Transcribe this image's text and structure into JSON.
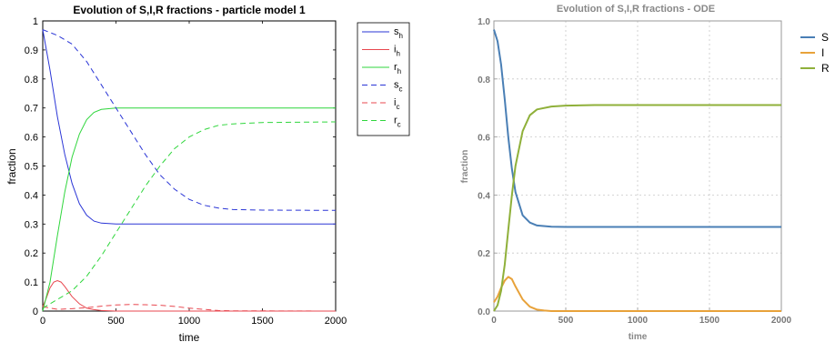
{
  "chart_data": [
    {
      "type": "line",
      "title": "Evolution of S,I,R fractions - particle model 1",
      "xlabel": "time",
      "ylabel": "fraction",
      "xlim": [
        0,
        2000
      ],
      "ylim": [
        0,
        1
      ],
      "xticks": [
        0,
        500,
        1000,
        1500,
        2000
      ],
      "yticks": [
        0,
        0.1,
        0.2,
        0.3,
        0.4,
        0.5,
        0.6,
        0.7,
        0.8,
        0.9,
        1
      ],
      "grid": false,
      "legend_position": "top-right",
      "series": [
        {
          "key": "sh",
          "name": "s",
          "sub": "h",
          "color": "#2a35d6",
          "dash": false,
          "x": [
            0,
            50,
            100,
            150,
            200,
            250,
            300,
            350,
            400,
            500,
            700,
            1000,
            2000
          ],
          "y": [
            0.97,
            0.83,
            0.67,
            0.54,
            0.44,
            0.37,
            0.33,
            0.31,
            0.303,
            0.3,
            0.3,
            0.3,
            0.3
          ]
        },
        {
          "key": "ih",
          "name": "i",
          "sub": "h",
          "color": "#e8474f",
          "dash": false,
          "x": [
            0,
            25,
            50,
            75,
            100,
            125,
            150,
            200,
            250,
            300,
            350,
            400,
            500,
            2000
          ],
          "y": [
            0.015,
            0.045,
            0.08,
            0.1,
            0.105,
            0.1,
            0.085,
            0.05,
            0.025,
            0.01,
            0.005,
            0.002,
            0,
            0
          ]
        },
        {
          "key": "rh",
          "name": "r",
          "sub": "h",
          "color": "#2fd63c",
          "dash": false,
          "x": [
            0,
            50,
            100,
            150,
            200,
            250,
            300,
            350,
            400,
            500,
            700,
            1000,
            2000
          ],
          "y": [
            0.0,
            0.1,
            0.26,
            0.41,
            0.53,
            0.61,
            0.66,
            0.685,
            0.695,
            0.7,
            0.7,
            0.7,
            0.7
          ]
        },
        {
          "key": "sc",
          "name": "s",
          "sub": "c",
          "color": "#2a35d6",
          "dash": true,
          "x": [
            0,
            100,
            200,
            300,
            400,
            500,
            600,
            700,
            800,
            900,
            1000,
            1100,
            1200,
            1300,
            1500,
            2000
          ],
          "y": [
            0.97,
            0.95,
            0.92,
            0.86,
            0.78,
            0.7,
            0.62,
            0.54,
            0.47,
            0.42,
            0.385,
            0.365,
            0.355,
            0.35,
            0.348,
            0.347
          ]
        },
        {
          "key": "ic",
          "name": "i",
          "sub": "c",
          "color": "#e8474f",
          "dash": true,
          "x": [
            0,
            100,
            200,
            300,
            400,
            500,
            600,
            700,
            800,
            900,
            1000,
            1100,
            1200,
            1300,
            2000
          ],
          "y": [
            0.015,
            0.006,
            0.008,
            0.012,
            0.017,
            0.021,
            0.023,
            0.022,
            0.02,
            0.016,
            0.01,
            0.006,
            0.002,
            0.001,
            0.0
          ]
        },
        {
          "key": "rc",
          "name": "r",
          "sub": "c",
          "color": "#2fd63c",
          "dash": true,
          "x": [
            0,
            100,
            200,
            300,
            400,
            500,
            600,
            700,
            800,
            900,
            1000,
            1100,
            1200,
            1300,
            1500,
            2000
          ],
          "y": [
            0.01,
            0.04,
            0.07,
            0.12,
            0.19,
            0.27,
            0.35,
            0.43,
            0.5,
            0.56,
            0.6,
            0.625,
            0.64,
            0.645,
            0.65,
            0.652
          ]
        }
      ]
    },
    {
      "type": "line",
      "title": "Evolution of S,I,R fractions -  ODE",
      "xlabel": "time",
      "ylabel": "fraction",
      "xlim": [
        0,
        2000
      ],
      "ylim": [
        0,
        1
      ],
      "xticks": [
        0,
        500,
        1000,
        1500,
        2000
      ],
      "yticks": [
        0.0,
        0.2,
        0.4,
        0.6,
        0.8,
        1.0
      ],
      "ytick_labels": [
        "0.0",
        "0.2",
        "0.4",
        "0.6",
        "0.8",
        "1.0"
      ],
      "grid": true,
      "legend_position": "right",
      "series": [
        {
          "key": "S",
          "name": "S",
          "color": "#4a7fb5",
          "x": [
            0,
            25,
            50,
            75,
            100,
            125,
            150,
            200,
            250,
            300,
            400,
            500,
            700,
            2000
          ],
          "y": [
            0.97,
            0.93,
            0.85,
            0.73,
            0.6,
            0.49,
            0.41,
            0.33,
            0.305,
            0.295,
            0.291,
            0.29,
            0.29,
            0.29
          ]
        },
        {
          "key": "I",
          "name": "I",
          "color": "#e8a23a",
          "x": [
            0,
            25,
            50,
            75,
            100,
            125,
            150,
            200,
            250,
            300,
            350,
            400,
            2000
          ],
          "y": [
            0.03,
            0.05,
            0.08,
            0.105,
            0.118,
            0.11,
            0.085,
            0.04,
            0.015,
            0.005,
            0.002,
            0.0,
            0.0
          ]
        },
        {
          "key": "R",
          "name": "R",
          "color": "#8fb03a",
          "x": [
            0,
            25,
            50,
            75,
            100,
            125,
            150,
            200,
            250,
            300,
            400,
            500,
            700,
            2000
          ],
          "y": [
            0.0,
            0.02,
            0.07,
            0.16,
            0.28,
            0.4,
            0.5,
            0.62,
            0.675,
            0.695,
            0.705,
            0.708,
            0.71,
            0.71
          ]
        }
      ]
    }
  ]
}
